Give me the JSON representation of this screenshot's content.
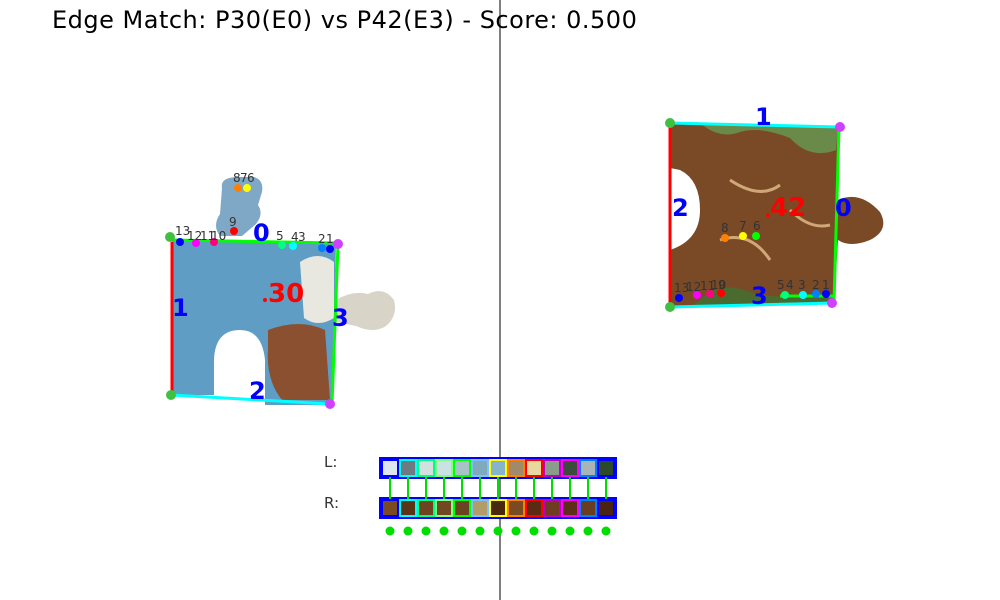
{
  "header": {
    "title": "Edge Match: P30(E0) vs P42(E3) - Score: 0.500"
  },
  "pieces": {
    "left": {
      "id_label": "30",
      "edge_labels": [
        "0",
        "1",
        "2",
        "3"
      ],
      "point_labels": [
        "13",
        "12",
        "11",
        "10",
        "9",
        "8",
        "7",
        "6",
        "5",
        "4",
        "3",
        "2",
        "1"
      ],
      "colors": {
        "id": "#ff0000",
        "edge_label": "#0000ff",
        "body": "#5a8fb0"
      }
    },
    "right": {
      "id_label": "42",
      "edge_labels": [
        "0",
        "1",
        "2",
        "3"
      ],
      "point_labels": [
        "13",
        "12",
        "11",
        "10",
        "9",
        "8",
        "7",
        "6",
        "5",
        "4",
        "3",
        "2",
        "1"
      ],
      "colors": {
        "id": "#ff0000",
        "edge_label": "#0000ff",
        "body": "#7a4a26"
      }
    }
  },
  "strips": {
    "left_label": "L:",
    "right_label": "R:",
    "left_colors": [
      "#dde6ee",
      "#6e7a80",
      "#d2e0e0",
      "#cbe2e4",
      "#a8c2c8",
      "#7fa9bd",
      "#86b4cc",
      "#a08a6a",
      "#e8d8a0",
      "#8a9c8a",
      "#3c4c3c",
      "#a8b4b8",
      "#2c4a2a"
    ],
    "right_colors": [
      "#7a4a22",
      "#5a3416",
      "#6e4420",
      "#704822",
      "#6a4420",
      "#b49c68",
      "#4a2810",
      "#7a4a20",
      "#5a2a12",
      "#6e3c1e",
      "#5c3018",
      "#6a3c20",
      "#4a2410"
    ],
    "frame_colors": [
      "#0000ff",
      "#00ffff",
      "#00ff80",
      "#80ff80",
      "#00ff00",
      "#80c0ff",
      "#ffff00",
      "#ff8000",
      "#ff0000",
      "#c000c0",
      "#ff00ff",
      "#0080ff",
      "#0000ff"
    ]
  },
  "colors": {
    "match_line": "#00dd00",
    "divider": "#808080",
    "corner": "#d040ff",
    "corner_green": "#40c040"
  }
}
